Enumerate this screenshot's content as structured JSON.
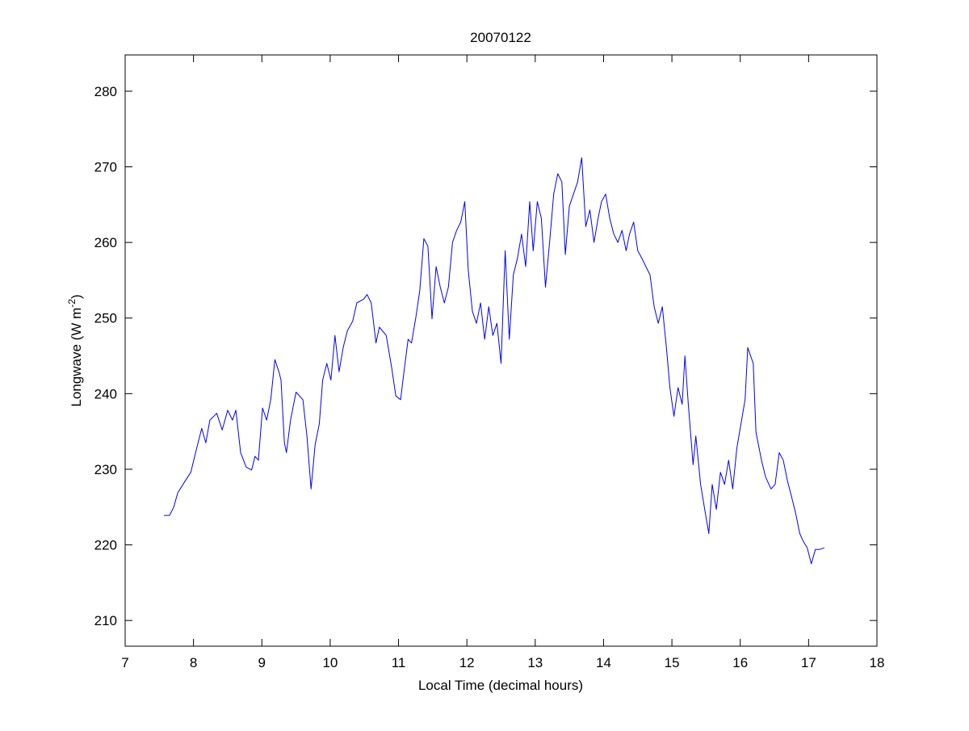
{
  "chart_data": {
    "type": "line",
    "title": "20070122",
    "xlabel": "Local Time (decimal hours)",
    "ylabel": {
      "main": "Longwave (W m",
      "sup": "-2",
      "end": ")"
    },
    "xlim": [
      7,
      18
    ],
    "ylim": [
      206.6,
      284.8
    ],
    "xticks": [
      7,
      8,
      9,
      10,
      11,
      12,
      13,
      14,
      15,
      16,
      17,
      18
    ],
    "yticks": [
      210,
      220,
      230,
      240,
      250,
      260,
      270,
      280
    ],
    "grid": false,
    "series": [
      {
        "name": "Longwave",
        "color": "#0000ff",
        "x": [
          7.57,
          7.65,
          7.71,
          7.77,
          7.86,
          7.96,
          8.03,
          8.12,
          8.18,
          8.24,
          8.34,
          8.42,
          8.5,
          8.57,
          8.62,
          8.69,
          8.77,
          8.85,
          8.9,
          8.95,
          9.01,
          9.07,
          9.13,
          9.19,
          9.25,
          9.28,
          9.33,
          9.36,
          9.42,
          9.5,
          9.6,
          9.66,
          9.72,
          9.78,
          9.84,
          9.89,
          9.95,
          10.01,
          10.07,
          10.13,
          10.19,
          10.25,
          10.33,
          10.39,
          10.49,
          10.54,
          10.6,
          10.67,
          10.72,
          10.82,
          10.9,
          10.96,
          11.03,
          11.08,
          11.14,
          11.19,
          11.25,
          11.31,
          11.37,
          11.43,
          11.49,
          11.55,
          11.61,
          11.67,
          11.73,
          11.79,
          11.85,
          11.91,
          11.97,
          12.02,
          12.08,
          12.14,
          12.2,
          12.26,
          12.32,
          12.38,
          12.44,
          12.5,
          12.56,
          12.62,
          12.68,
          12.74,
          12.8,
          12.86,
          12.92,
          12.97,
          13.03,
          13.09,
          13.15,
          13.21,
          13.27,
          13.33,
          13.39,
          13.44,
          13.5,
          13.56,
          13.62,
          13.68,
          13.74,
          13.8,
          13.86,
          13.92,
          13.97,
          14.03,
          14.09,
          14.15,
          14.21,
          14.27,
          14.33,
          14.38,
          14.44,
          14.5,
          14.56,
          14.62,
          14.68,
          14.74,
          14.8,
          14.86,
          14.92,
          14.97,
          15.03,
          15.09,
          15.15,
          15.19,
          15.24,
          15.31,
          15.35,
          15.42,
          15.48,
          15.54,
          15.59,
          15.65,
          15.71,
          15.77,
          15.83,
          15.89,
          15.95,
          16.01,
          16.07,
          16.11,
          16.19,
          16.23,
          16.31,
          16.37,
          16.45,
          16.51,
          16.57,
          16.63,
          16.69,
          16.75,
          16.81,
          16.87,
          16.92,
          16.98,
          17.04,
          17.1,
          17.16,
          17.23
        ],
        "y": [
          223.9,
          223.9,
          225,
          226.9,
          228.2,
          229.6,
          232.2,
          235.4,
          233.5,
          236.5,
          237.4,
          235.2,
          237.8,
          236.5,
          237.8,
          232.2,
          230.3,
          229.9,
          231.7,
          231.2,
          238.1,
          236.5,
          239.2,
          244.5,
          242.9,
          241.8,
          233.5,
          232.2,
          236.5,
          240.2,
          239.2,
          234.4,
          227.4,
          233.3,
          236,
          241.8,
          244,
          241.8,
          247.7,
          242.9,
          246.1,
          248.3,
          249.6,
          252,
          252.5,
          253.1,
          252,
          246.7,
          248.8,
          247.7,
          243.4,
          239.7,
          239.2,
          242.9,
          247.2,
          246.7,
          249.9,
          253.6,
          260.5,
          259.5,
          249.9,
          256.8,
          254.1,
          252,
          254.1,
          260,
          261.6,
          262.7,
          265.4,
          256.3,
          250.9,
          249.3,
          252,
          247.2,
          251.5,
          247.7,
          249.3,
          244,
          258.9,
          247.2,
          255.7,
          257.9,
          261.1,
          256.8,
          265.4,
          258.9,
          265.4,
          263.2,
          254.1,
          260,
          266.4,
          269.1,
          268,
          258.4,
          264.8,
          266.4,
          268,
          271.2,
          262.1,
          264.3,
          260,
          263.2,
          265.4,
          266.4,
          263.2,
          261.1,
          260,
          261.6,
          258.9,
          261.1,
          262.7,
          258.9,
          257.9,
          256.8,
          255.7,
          251.5,
          249.3,
          251.5,
          246.1,
          240.8,
          237,
          240.8,
          238.6,
          245,
          238.6,
          230.6,
          234.4,
          228,
          224.7,
          221.5,
          228,
          224.7,
          229.6,
          228,
          231.2,
          227.4,
          232.8,
          236,
          239.2,
          246.1,
          244,
          234.9,
          231.2,
          229,
          227.4,
          228,
          232.2,
          231.2,
          228.5,
          226.4,
          224.2,
          221.5,
          220.5,
          219.6,
          217.5,
          219.4,
          219.4,
          219.6
        ]
      }
    ]
  }
}
